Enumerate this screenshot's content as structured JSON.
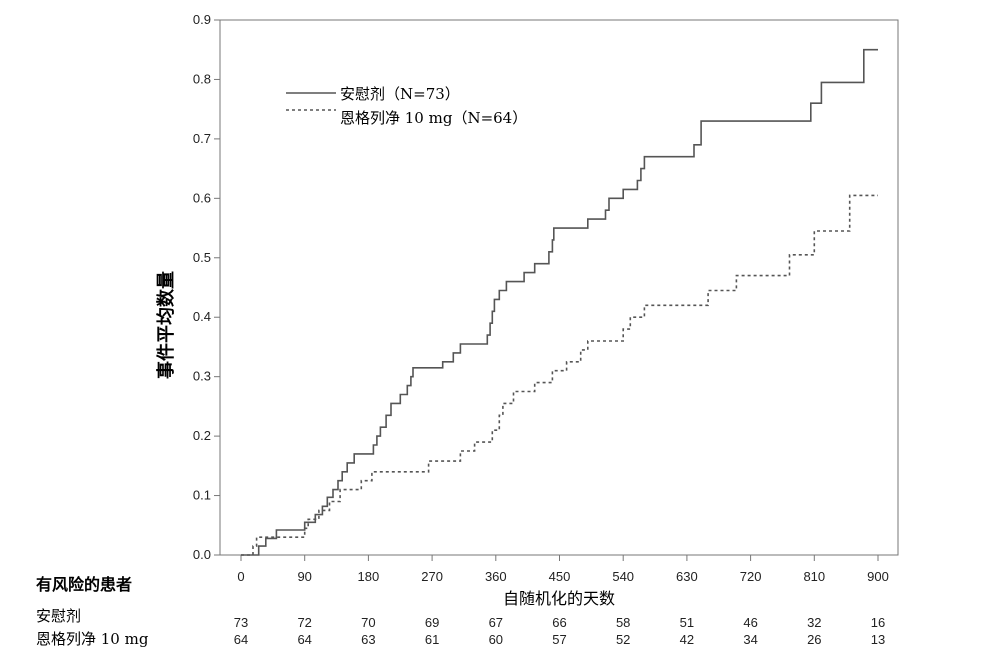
{
  "chart_data": {
    "type": "line",
    "xlabel": "自随机化的天数",
    "ylabel": "事件平均数量",
    "xlim": [
      0,
      900
    ],
    "ylim": [
      0,
      0.9
    ],
    "x_ticks": [
      "0",
      "90",
      "180",
      "270",
      "360",
      "450",
      "540",
      "630",
      "720",
      "810",
      "900"
    ],
    "y_ticks": [
      "0.0",
      "0.1",
      "0.2",
      "0.3",
      "0.4",
      "0.5",
      "0.6",
      "0.7",
      "0.8",
      "0.9"
    ],
    "grid": false,
    "legend_position": "top-left",
    "step": true,
    "series": [
      {
        "name": "安慰剂（N=73）",
        "line_style": "solid",
        "color": "#555555",
        "points": [
          [
            0,
            0
          ],
          [
            25,
            0.015
          ],
          [
            35,
            0.028
          ],
          [
            50,
            0.042
          ],
          [
            90,
            0.055
          ],
          [
            105,
            0.068
          ],
          [
            115,
            0.082
          ],
          [
            122,
            0.097
          ],
          [
            130,
            0.11
          ],
          [
            137,
            0.125
          ],
          [
            143,
            0.14
          ],
          [
            150,
            0.155
          ],
          [
            160,
            0.17
          ],
          [
            187,
            0.185
          ],
          [
            192,
            0.2
          ],
          [
            197,
            0.215
          ],
          [
            205,
            0.235
          ],
          [
            212,
            0.255
          ],
          [
            225,
            0.27
          ],
          [
            235,
            0.285
          ],
          [
            240,
            0.3
          ],
          [
            243,
            0.315
          ],
          [
            285,
            0.325
          ],
          [
            300,
            0.34
          ],
          [
            310,
            0.355
          ],
          [
            348,
            0.37
          ],
          [
            352,
            0.39
          ],
          [
            355,
            0.41
          ],
          [
            358,
            0.43
          ],
          [
            365,
            0.445
          ],
          [
            375,
            0.46
          ],
          [
            400,
            0.475
          ],
          [
            415,
            0.49
          ],
          [
            435,
            0.51
          ],
          [
            440,
            0.53
          ],
          [
            442,
            0.55
          ],
          [
            490,
            0.565
          ],
          [
            515,
            0.58
          ],
          [
            520,
            0.6
          ],
          [
            540,
            0.615
          ],
          [
            560,
            0.63
          ],
          [
            565,
            0.65
          ],
          [
            570,
            0.67
          ],
          [
            640,
            0.69
          ],
          [
            650,
            0.73
          ],
          [
            805,
            0.76
          ],
          [
            820,
            0.795
          ],
          [
            880,
            0.85
          ],
          [
            900,
            0.85
          ]
        ]
      },
      {
        "name": "恩格列净 10 mg（N=64）",
        "line_style": "dashed",
        "color": "#555555",
        "points": [
          [
            0,
            0
          ],
          [
            17,
            0.015
          ],
          [
            22,
            0.03
          ],
          [
            90,
            0.045
          ],
          [
            95,
            0.06
          ],
          [
            110,
            0.075
          ],
          [
            125,
            0.09
          ],
          [
            140,
            0.11
          ],
          [
            170,
            0.125
          ],
          [
            185,
            0.14
          ],
          [
            265,
            0.158
          ],
          [
            310,
            0.175
          ],
          [
            330,
            0.19
          ],
          [
            355,
            0.21
          ],
          [
            365,
            0.235
          ],
          [
            370,
            0.255
          ],
          [
            385,
            0.275
          ],
          [
            415,
            0.29
          ],
          [
            440,
            0.31
          ],
          [
            460,
            0.325
          ],
          [
            480,
            0.345
          ],
          [
            490,
            0.36
          ],
          [
            540,
            0.38
          ],
          [
            550,
            0.4
          ],
          [
            570,
            0.42
          ],
          [
            660,
            0.445
          ],
          [
            700,
            0.47
          ],
          [
            775,
            0.505
          ],
          [
            810,
            0.545
          ],
          [
            860,
            0.605
          ],
          [
            900,
            0.605
          ]
        ]
      }
    ]
  },
  "risk_table": {
    "title": "有风险的患者",
    "rows": [
      {
        "label": "安慰剂",
        "values": [
          "73",
          "72",
          "70",
          "69",
          "67",
          "66",
          "58",
          "51",
          "46",
          "32",
          "16"
        ]
      },
      {
        "label": "恩格列净 10 mg",
        "values": [
          "64",
          "64",
          "63",
          "61",
          "60",
          "57",
          "52",
          "42",
          "34",
          "26",
          "13"
        ]
      }
    ]
  }
}
